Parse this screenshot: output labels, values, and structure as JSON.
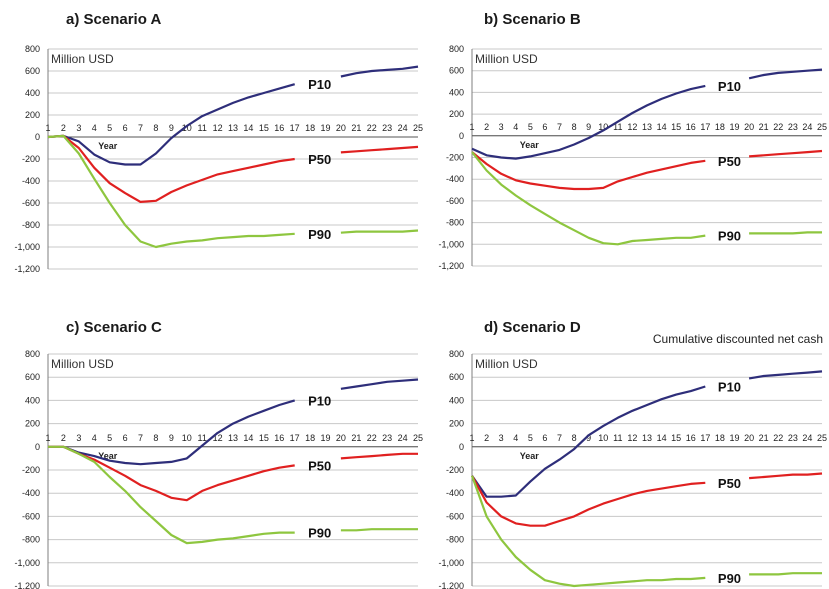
{
  "caption": "Cumulative discounted net cash",
  "series_colors": {
    "P10": "#2e2e7a",
    "P50": "#e02020",
    "P90": "#8ec63f"
  },
  "chart_data": [
    {
      "type": "line",
      "title": "a) Scenario A",
      "unit_label": "Million USD",
      "xlabel": "Year",
      "ylim": [
        -1200,
        800
      ],
      "yticks": [
        "800",
        "600",
        "400",
        "200",
        "0",
        "-200",
        "-400",
        "-600",
        "-800",
        "-1,000",
        "-1,200"
      ],
      "x": [
        1,
        2,
        3,
        4,
        5,
        6,
        7,
        8,
        9,
        10,
        11,
        12,
        13,
        14,
        15,
        16,
        17,
        18,
        19,
        20,
        21,
        22,
        23,
        24,
        25
      ],
      "series": [
        {
          "name": "P10",
          "values": [
            0,
            10,
            -40,
            -160,
            -230,
            -250,
            -250,
            -150,
            -10,
            100,
            190,
            250,
            310,
            360,
            400,
            440,
            480,
            null,
            null,
            550,
            580,
            600,
            610,
            620,
            640
          ]
        },
        {
          "name": "P50",
          "values": [
            0,
            10,
            -100,
            -280,
            -420,
            -510,
            -590,
            -580,
            -500,
            -440,
            -390,
            -340,
            -310,
            -280,
            -250,
            -220,
            -200,
            null,
            null,
            -140,
            -130,
            -120,
            -110,
            -100,
            -90
          ]
        },
        {
          "name": "P90",
          "values": [
            0,
            10,
            -150,
            -380,
            -600,
            -800,
            -950,
            -1000,
            -970,
            -950,
            -940,
            -920,
            -910,
            -900,
            -900,
            -890,
            -880,
            null,
            null,
            -870,
            -860,
            -860,
            -860,
            -860,
            -850
          ]
        }
      ]
    },
    {
      "type": "line",
      "title": "b) Scenario B",
      "unit_label": "Million USD",
      "xlabel": "Year",
      "ylim": [
        -1200,
        800
      ],
      "yticks": [
        "800",
        "600",
        "400",
        "200",
        "0",
        "-200",
        "-400",
        "-600",
        "-800",
        "-1,000",
        "-1,200"
      ],
      "x": [
        1,
        2,
        3,
        4,
        5,
        6,
        7,
        8,
        9,
        10,
        11,
        12,
        13,
        14,
        15,
        16,
        17,
        18,
        19,
        20,
        21,
        22,
        23,
        24,
        25
      ],
      "series": [
        {
          "name": "P10",
          "values": [
            -120,
            -180,
            -200,
            -210,
            -190,
            -160,
            -130,
            -80,
            -20,
            50,
            130,
            210,
            280,
            340,
            390,
            430,
            460,
            null,
            null,
            530,
            560,
            580,
            590,
            600,
            610
          ]
        },
        {
          "name": "P50",
          "values": [
            -150,
            -260,
            -350,
            -410,
            -440,
            -460,
            -480,
            -490,
            -490,
            -480,
            -420,
            -380,
            -340,
            -310,
            -280,
            -250,
            -230,
            null,
            null,
            -190,
            -180,
            -170,
            -160,
            -150,
            -140
          ]
        },
        {
          "name": "P90",
          "values": [
            -150,
            -320,
            -450,
            -550,
            -640,
            -720,
            -800,
            -870,
            -940,
            -990,
            -1000,
            -970,
            -960,
            -950,
            -940,
            -940,
            -920,
            null,
            null,
            -900,
            -900,
            -900,
            -900,
            -890,
            -890
          ]
        }
      ]
    },
    {
      "type": "line",
      "title": "c) Scenario C",
      "unit_label": "Million USD",
      "xlabel": "Year",
      "ylim": [
        -1200,
        800
      ],
      "yticks": [
        "800",
        "600",
        "400",
        "200",
        "0",
        "-200",
        "-400",
        "-600",
        "-800",
        "-1,000",
        "-1,200"
      ],
      "x": [
        1,
        2,
        3,
        4,
        5,
        6,
        7,
        8,
        9,
        10,
        11,
        12,
        13,
        14,
        15,
        16,
        17,
        18,
        19,
        20,
        21,
        22,
        23,
        24,
        25
      ],
      "series": [
        {
          "name": "P10",
          "values": [
            0,
            0,
            -50,
            -80,
            -120,
            -140,
            -150,
            -140,
            -130,
            -100,
            10,
            120,
            200,
            260,
            310,
            360,
            400,
            null,
            null,
            500,
            520,
            540,
            560,
            570,
            580
          ]
        },
        {
          "name": "P50",
          "values": [
            0,
            0,
            -60,
            -110,
            -180,
            -250,
            -330,
            -380,
            -440,
            -460,
            -380,
            -330,
            -290,
            -250,
            -210,
            -180,
            -160,
            null,
            null,
            -100,
            -90,
            -80,
            -70,
            -60,
            -60
          ]
        },
        {
          "name": "P90",
          "values": [
            0,
            0,
            -60,
            -130,
            -260,
            -380,
            -520,
            -640,
            -760,
            -830,
            -820,
            -800,
            -790,
            -770,
            -750,
            -740,
            -740,
            null,
            null,
            -720,
            -720,
            -710,
            -710,
            -710,
            -710
          ]
        }
      ]
    },
    {
      "type": "line",
      "title": "d) Scenario D",
      "unit_label": "Million USD",
      "xlabel": "Year",
      "ylim": [
        -1200,
        800
      ],
      "yticks": [
        "800",
        "600",
        "400",
        "200",
        "0",
        "-200",
        "-400",
        "-600",
        "-800",
        "-1,000",
        "-1,200"
      ],
      "x": [
        1,
        2,
        3,
        4,
        5,
        6,
        7,
        8,
        9,
        10,
        11,
        12,
        13,
        14,
        15,
        16,
        17,
        18,
        19,
        20,
        21,
        22,
        23,
        24,
        25
      ],
      "series": [
        {
          "name": "P10",
          "values": [
            -250,
            -430,
            -430,
            -420,
            -300,
            -190,
            -110,
            -20,
            100,
            180,
            250,
            310,
            360,
            410,
            450,
            480,
            520,
            null,
            null,
            590,
            610,
            620,
            630,
            640,
            650
          ]
        },
        {
          "name": "P50",
          "values": [
            -250,
            -480,
            -600,
            -660,
            -680,
            -680,
            -640,
            -600,
            -540,
            -490,
            -450,
            -410,
            -380,
            -360,
            -340,
            -320,
            -310,
            null,
            null,
            -270,
            -260,
            -250,
            -240,
            -240,
            -230
          ]
        },
        {
          "name": "P90",
          "values": [
            -250,
            -600,
            -800,
            -950,
            -1060,
            -1150,
            -1180,
            -1200,
            -1190,
            -1180,
            -1170,
            -1160,
            -1150,
            -1150,
            -1140,
            -1140,
            -1130,
            null,
            null,
            -1100,
            -1100,
            -1100,
            -1090,
            -1090,
            -1090
          ]
        }
      ]
    }
  ]
}
